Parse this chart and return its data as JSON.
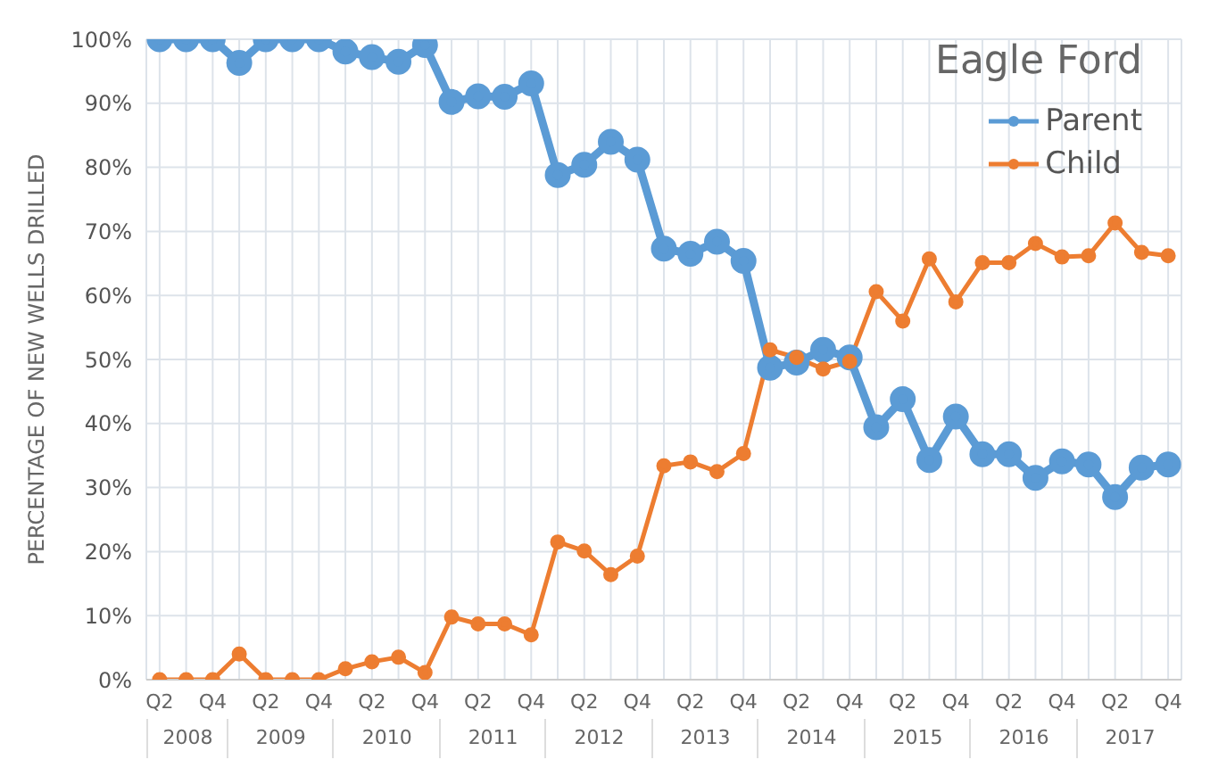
{
  "chart_data": {
    "type": "line",
    "title": "Eagle Ford",
    "ylabel": "PERCENTAGE OF NEW WELLS DRILLED",
    "categories": [
      "Q2",
      null,
      "Q4",
      null,
      "Q2",
      null,
      "Q4",
      null,
      "Q2",
      null,
      "Q4",
      null,
      "Q2",
      null,
      "Q4",
      null,
      "Q2",
      null,
      "Q4",
      null,
      "Q2",
      null,
      "Q4",
      null,
      "Q2",
      null,
      "Q4",
      null,
      "Q2",
      null,
      "Q4",
      null,
      "Q2",
      null,
      "Q4",
      null,
      "Q2",
      null,
      "Q4"
    ],
    "annotations": [
      "2008",
      "2009",
      "2010",
      "2011",
      "2012",
      "2013",
      "2014",
      "2015",
      "2016",
      "2017"
    ],
    "series": [
      {
        "name": "Parent",
        "color": "#5b9bd5",
        "values": [
          100,
          100,
          100,
          96.3,
          100,
          100,
          100,
          98.1,
          97.2,
          96.5,
          99.1,
          90.2,
          91.1,
          91,
          93.1,
          78.8,
          80.4,
          84,
          81.2,
          67.3,
          66.5,
          68.4,
          65.4,
          48.7,
          49.5,
          51.5,
          50.3,
          39.4,
          43.8,
          34.3,
          41.1,
          35.2,
          35.2,
          31.5,
          34.1,
          33.6,
          28.5,
          33.1,
          33.6
        ]
      },
      {
        "name": "Child",
        "color": "#ed7d31",
        "values": [
          0,
          0,
          0,
          4,
          0,
          0,
          0,
          1.7,
          2.8,
          3.5,
          1.1,
          9.8,
          8.7,
          8.7,
          7,
          21.5,
          20.1,
          16.4,
          19.3,
          33.4,
          34,
          32.5,
          35.3,
          51.5,
          50.3,
          48.5,
          49.7,
          60.6,
          56,
          65.7,
          59,
          65.1,
          65.1,
          68.1,
          66,
          66.2,
          71.3,
          66.7,
          66.2
        ]
      }
    ],
    "ylim": [
      0,
      100
    ],
    "yticks": [
      {
        "value": 0,
        "label": "0%"
      },
      {
        "value": 10,
        "label": "10%"
      },
      {
        "value": 20,
        "label": "20%"
      },
      {
        "value": 30,
        "label": "30%"
      },
      {
        "value": 40,
        "label": "40%"
      },
      {
        "value": 50,
        "label": "50%"
      },
      {
        "value": 60,
        "label": "60%"
      },
      {
        "value": 70,
        "label": "70%"
      },
      {
        "value": 80,
        "label": "80%"
      },
      {
        "value": 90,
        "label": "90%"
      },
      {
        "value": 100,
        "label": "100%"
      }
    ],
    "grid": true,
    "legend": "top right",
    "marker": "circle",
    "line_style": "solid"
  }
}
